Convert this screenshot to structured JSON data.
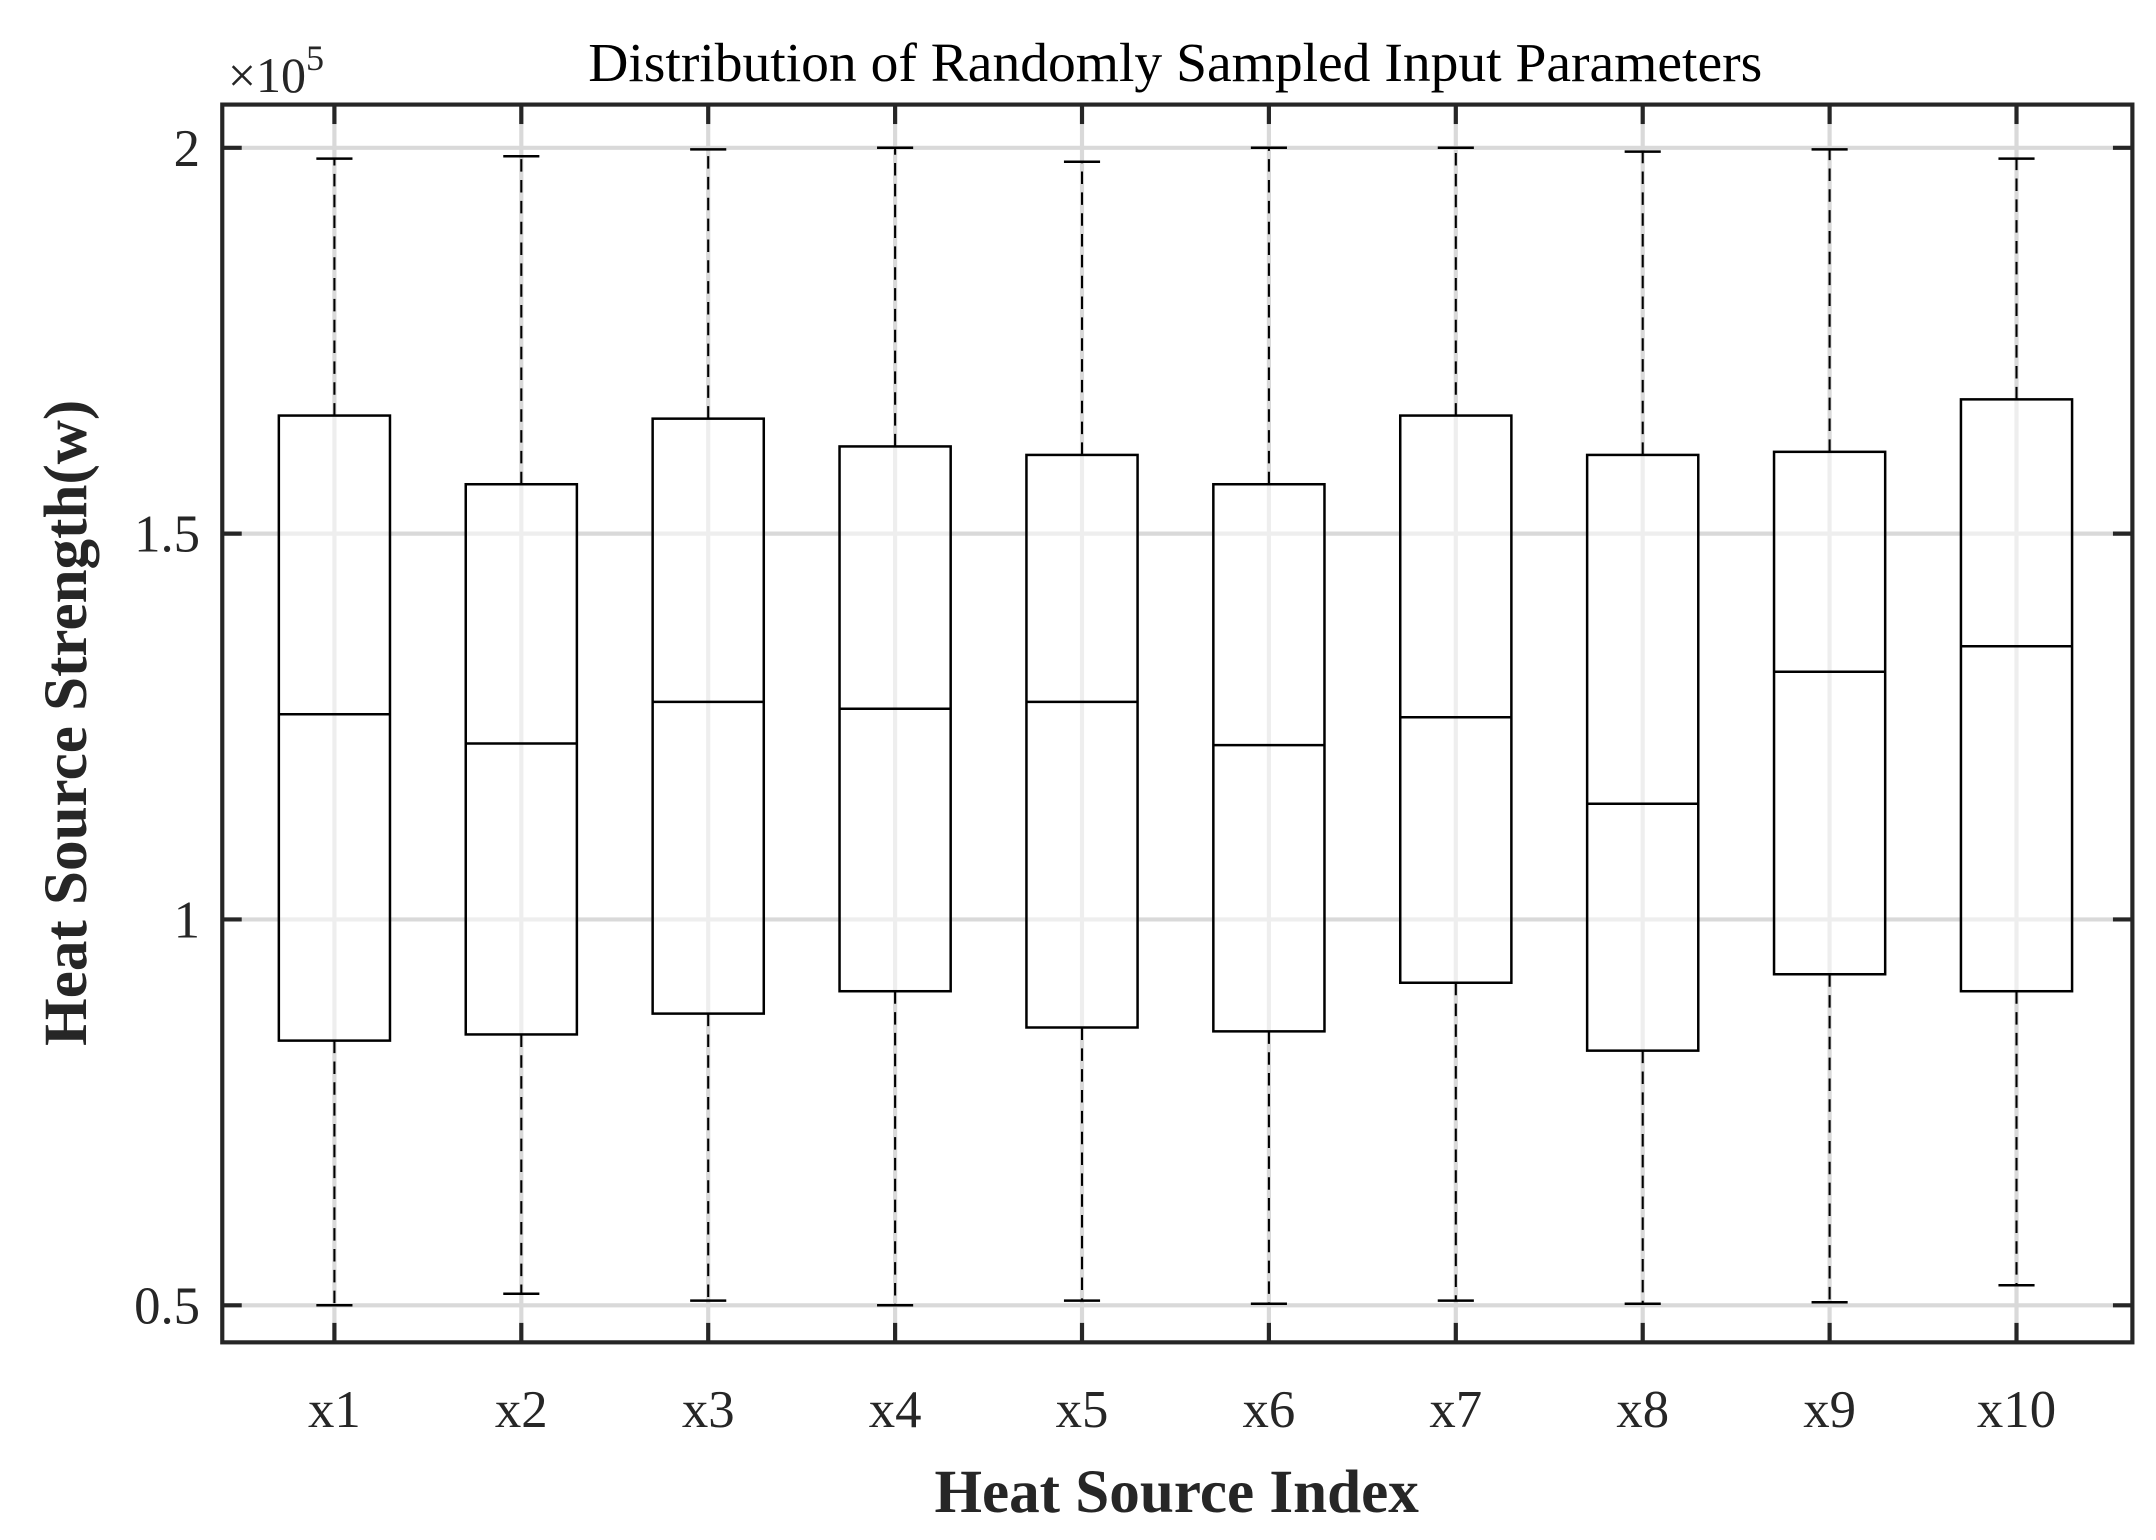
{
  "chart_data": {
    "type": "box",
    "title": "Distribution of Randomly Sampled Input Parameters",
    "xlabel": "Heat Source Index",
    "ylabel": "Heat Source Strength(w)",
    "y_multiplier_base": "×10",
    "y_multiplier_exp": "5",
    "ylim": [
      0.452,
      2.056
    ],
    "yticks": [
      0.5,
      1,
      1.5,
      2
    ],
    "ytick_labels": [
      "0.5",
      "1",
      "1.5",
      "2"
    ],
    "grid": true,
    "categories": [
      "x1",
      "x2",
      "x3",
      "x4",
      "x5",
      "x6",
      "x7",
      "x8",
      "x9",
      "x10"
    ],
    "boxes": [
      {
        "min": 0.5,
        "q1": 0.843,
        "median": 1.266,
        "q3": 1.653,
        "max": 1.986
      },
      {
        "min": 0.515,
        "q1": 0.851,
        "median": 1.228,
        "q3": 1.564,
        "max": 1.989
      },
      {
        "min": 0.506,
        "q1": 0.878,
        "median": 1.282,
        "q3": 1.649,
        "max": 1.998
      },
      {
        "min": 0.5,
        "q1": 0.907,
        "median": 1.273,
        "q3": 1.613,
        "max": 2.0
      },
      {
        "min": 0.506,
        "q1": 0.86,
        "median": 1.282,
        "q3": 1.602,
        "max": 1.982
      },
      {
        "min": 0.502,
        "q1": 0.855,
        "median": 1.226,
        "q3": 1.564,
        "max": 2.0
      },
      {
        "min": 0.506,
        "q1": 0.918,
        "median": 1.262,
        "q3": 1.653,
        "max": 2.0
      },
      {
        "min": 0.502,
        "q1": 0.83,
        "median": 1.15,
        "q3": 1.602,
        "max": 1.995
      },
      {
        "min": 0.504,
        "q1": 0.929,
        "median": 1.321,
        "q3": 1.606,
        "max": 1.998
      },
      {
        "min": 0.526,
        "q1": 0.907,
        "median": 1.354,
        "q3": 1.674,
        "max": 1.986
      }
    ],
    "colors": {
      "box": "#000000",
      "grid": "#d9d9d9",
      "axes": "#262626"
    }
  }
}
